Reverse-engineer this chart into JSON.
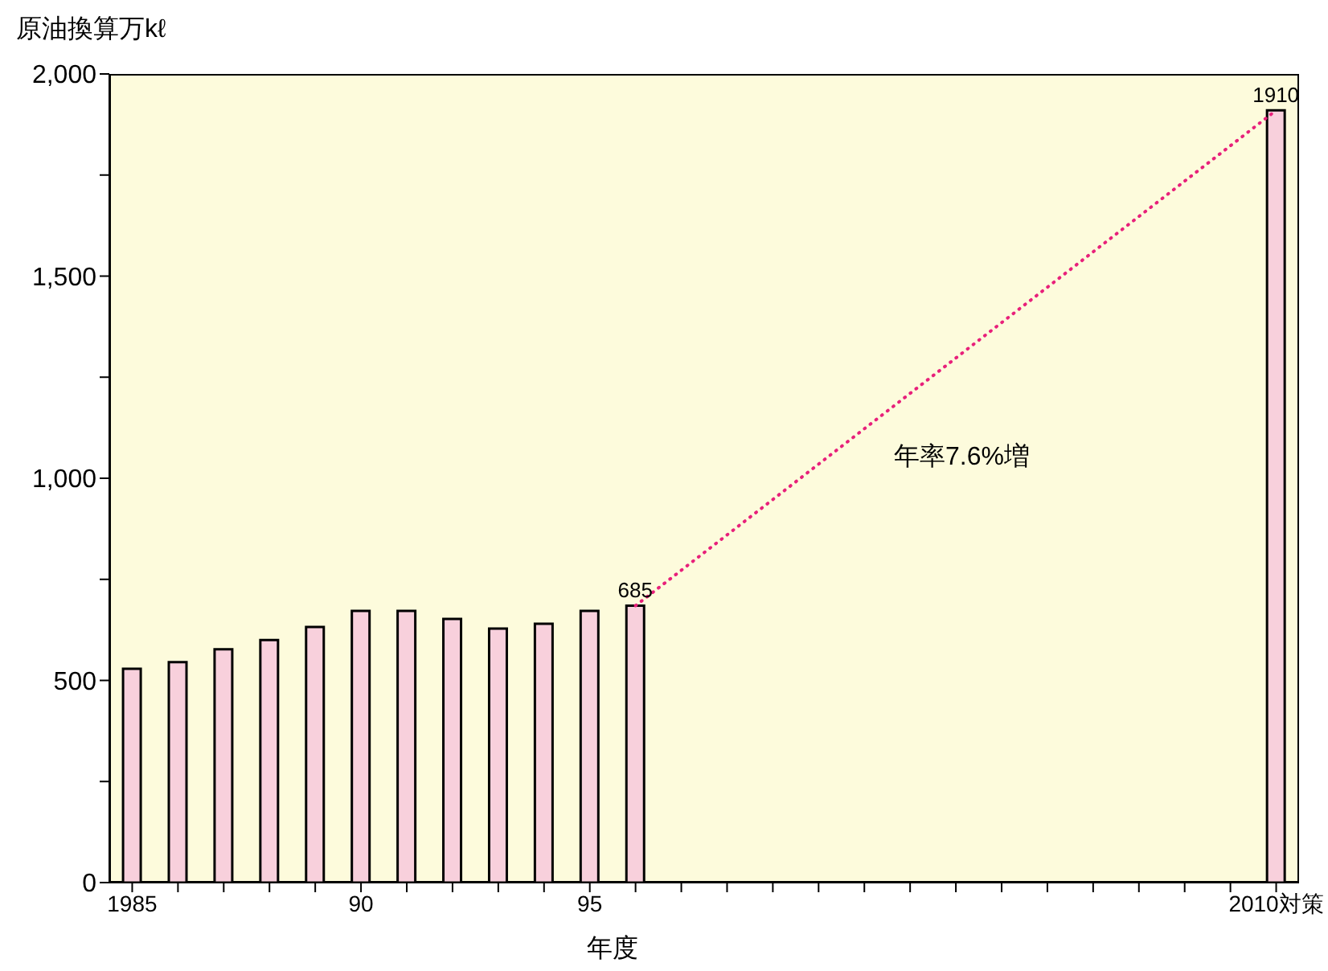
{
  "chart_data": {
    "type": "bar",
    "xlabel": "年度",
    "ylabel": "原油換算万kℓ",
    "categories": [
      "1985",
      null,
      null,
      null,
      null,
      "90",
      null,
      null,
      null,
      null,
      "95",
      null,
      null,
      null,
      null,
      null,
      null,
      null,
      null,
      null,
      null,
      null,
      null,
      null,
      null,
      "2010対策"
    ],
    "series": [
      {
        "color": "#f8d0dc",
        "values": [
          529,
          545,
          577,
          600,
          632,
          672,
          672,
          652,
          628,
          640,
          672,
          685,
          null,
          null,
          null,
          null,
          null,
          null,
          null,
          null,
          null,
          null,
          null,
          null,
          null,
          1910
        ],
        "value_labels": [
          null,
          null,
          null,
          null,
          null,
          null,
          null,
          null,
          null,
          null,
          null,
          "685",
          null,
          null,
          null,
          null,
          null,
          null,
          null,
          null,
          null,
          null,
          null,
          null,
          null,
          "1910"
        ]
      },
      {
        "type": "line",
        "color": "#e8207a",
        "line_style": "dotted",
        "marker": "none",
        "values": [
          null,
          null,
          null,
          null,
          null,
          null,
          null,
          null,
          null,
          null,
          null,
          685,
          null,
          null,
          null,
          null,
          null,
          null,
          null,
          null,
          null,
          null,
          null,
          null,
          null,
          1910
        ]
      }
    ],
    "ylim": [
      0,
      2000
    ],
    "yticks": [
      0,
      {
        "value": 250,
        "label": null
      },
      500,
      {
        "value": 750,
        "label": null
      },
      {
        "value": 1000,
        "label": "1,000"
      },
      {
        "value": 1250,
        "label": null
      },
      {
        "value": 1500,
        "label": "1,500"
      },
      {
        "value": 1750,
        "label": null
      },
      {
        "value": 2000,
        "label": "2,000"
      }
    ],
    "annotations": [
      "年率7.6%増"
    ]
  }
}
